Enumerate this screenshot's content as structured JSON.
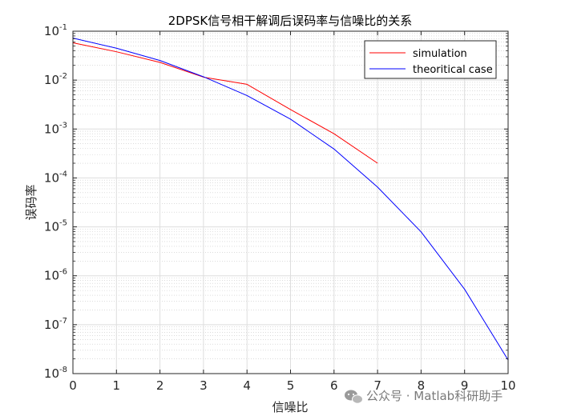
{
  "chart_data": {
    "type": "line",
    "title": "2DPSK信号相干解调后误码率与信噪比的关系",
    "xlabel": "信噪比",
    "ylabel": "误码率",
    "xlim": [
      0,
      10
    ],
    "ylim": [
      1e-08,
      0.1
    ],
    "yscale": "log",
    "grid": true,
    "minor_grid": true,
    "legend_position": "top-right",
    "x_ticks": [
      "0",
      "1",
      "2",
      "3",
      "4",
      "5",
      "6",
      "7",
      "8",
      "9",
      "10"
    ],
    "y_ticks": [
      {
        "base": "10",
        "exp": "-1"
      },
      {
        "base": "10",
        "exp": "-2"
      },
      {
        "base": "10",
        "exp": "-3"
      },
      {
        "base": "10",
        "exp": "-4"
      },
      {
        "base": "10",
        "exp": "-5"
      },
      {
        "base": "10",
        "exp": "-6"
      },
      {
        "base": "10",
        "exp": "-7"
      },
      {
        "base": "10",
        "exp": "-8"
      }
    ],
    "series": [
      {
        "name": "simulation",
        "color": "#ff0000",
        "x": [
          0,
          1,
          2,
          3,
          4,
          5,
          6,
          7
        ],
        "y": [
          0.058,
          0.038,
          0.023,
          0.0115,
          0.0082,
          0.0025,
          0.0008,
          0.0002
        ]
      },
      {
        "name": "theoritical case",
        "color": "#0000ff",
        "x": [
          0,
          1,
          2,
          3,
          4,
          5,
          6,
          7,
          8,
          9,
          10
        ],
        "y": [
          0.0723,
          0.0449,
          0.0252,
          0.0117,
          0.00484,
          0.00159,
          0.00039,
          6.5e-05,
          7.9e-06,
          5.3e-07,
          1.9e-08
        ]
      }
    ]
  },
  "watermark": {
    "text": "公众号 · Matlab科研助手",
    "icon": "wechat-icon"
  }
}
